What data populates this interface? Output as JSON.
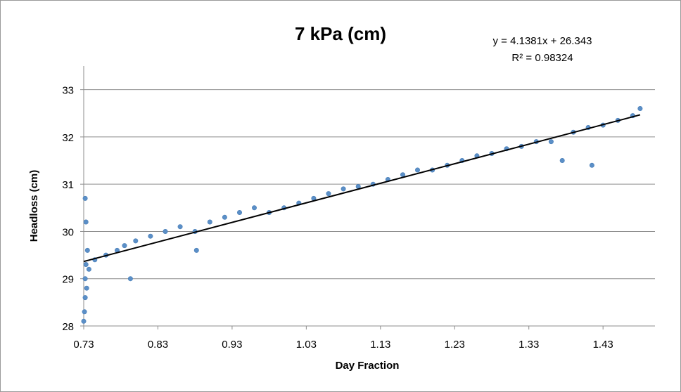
{
  "chart_data": {
    "type": "scatter",
    "title": "7 kPa (cm)",
    "xlabel": "Day Fraction",
    "ylabel": "Headloss (cm)",
    "xlim": [
      0.73,
      1.5
    ],
    "ylim": [
      28,
      33.5
    ],
    "x_ticks": [
      "0.73",
      "0.83",
      "0.93",
      "1.03",
      "1.13",
      "1.23",
      "1.33",
      "1.43"
    ],
    "y_ticks": [
      "28",
      "29",
      "30",
      "31",
      "32",
      "33"
    ],
    "grid": "horizontal",
    "legend": "none",
    "trendline": {
      "slope": 4.1381,
      "intercept": 26.343,
      "x_range": [
        0.73,
        1.48
      ],
      "equation": "y = 4.1381x + 26.343",
      "r_squared": "R² = 0.98324"
    },
    "series": [
      {
        "color": "#5b8fc7",
        "points": [
          [
            0.73,
            28.1
          ],
          [
            0.731,
            28.3
          ],
          [
            0.732,
            28.6
          ],
          [
            0.732,
            29.0
          ],
          [
            0.733,
            29.3
          ],
          [
            0.734,
            28.8
          ],
          [
            0.733,
            30.2
          ],
          [
            0.732,
            30.7
          ],
          [
            0.735,
            29.6
          ],
          [
            0.737,
            29.2
          ],
          [
            0.745,
            29.4
          ],
          [
            0.76,
            29.5
          ],
          [
            0.775,
            29.6
          ],
          [
            0.785,
            29.7
          ],
          [
            0.793,
            29.0
          ],
          [
            0.8,
            29.8
          ],
          [
            0.82,
            29.9
          ],
          [
            0.84,
            30.0
          ],
          [
            0.86,
            30.1
          ],
          [
            0.88,
            30.0
          ],
          [
            0.882,
            29.6
          ],
          [
            0.9,
            30.2
          ],
          [
            0.92,
            30.3
          ],
          [
            0.94,
            30.4
          ],
          [
            0.96,
            30.5
          ],
          [
            0.98,
            30.4
          ],
          [
            1.0,
            30.5
          ],
          [
            1.02,
            30.6
          ],
          [
            1.04,
            30.7
          ],
          [
            1.06,
            30.8
          ],
          [
            1.08,
            30.9
          ],
          [
            1.1,
            30.95
          ],
          [
            1.12,
            31.0
          ],
          [
            1.14,
            31.1
          ],
          [
            1.16,
            31.2
          ],
          [
            1.18,
            31.3
          ],
          [
            1.2,
            31.3
          ],
          [
            1.22,
            31.4
          ],
          [
            1.24,
            31.5
          ],
          [
            1.26,
            31.6
          ],
          [
            1.28,
            31.65
          ],
          [
            1.3,
            31.75
          ],
          [
            1.32,
            31.8
          ],
          [
            1.34,
            31.9
          ],
          [
            1.36,
            31.9
          ],
          [
            1.375,
            31.5
          ],
          [
            1.39,
            32.1
          ],
          [
            1.41,
            32.2
          ],
          [
            1.415,
            31.4
          ],
          [
            1.43,
            32.25
          ],
          [
            1.45,
            32.35
          ],
          [
            1.47,
            32.45
          ],
          [
            1.48,
            32.6
          ]
        ]
      }
    ]
  }
}
